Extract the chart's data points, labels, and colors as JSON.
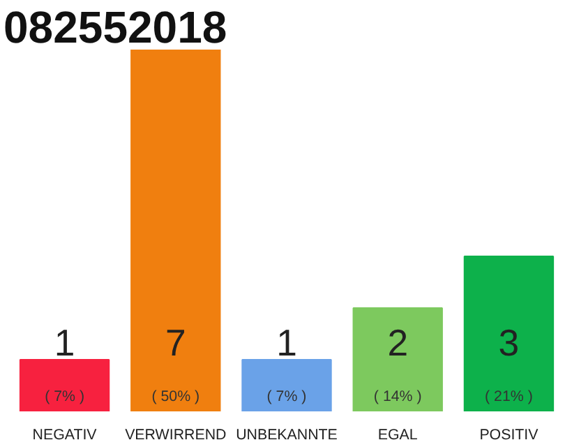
{
  "chart_data": {
    "type": "bar",
    "title": "082552018",
    "categories": [
      "NEGATIV",
      "VERWIRREND",
      "UNBEKANNTE",
      "EGAL",
      "POSITIV"
    ],
    "values": [
      1,
      7,
      1,
      2,
      3
    ],
    "colors": [
      "#f7213f",
      "#f07f0f",
      "#6aa2e8",
      "#7dc95e",
      "#0db14b"
    ],
    "data_labels": true,
    "annotations": [
      "( 7% )",
      "( 50% )",
      "( 7% )",
      "( 14% )",
      "( 21% )"
    ],
    "grid": false
  }
}
